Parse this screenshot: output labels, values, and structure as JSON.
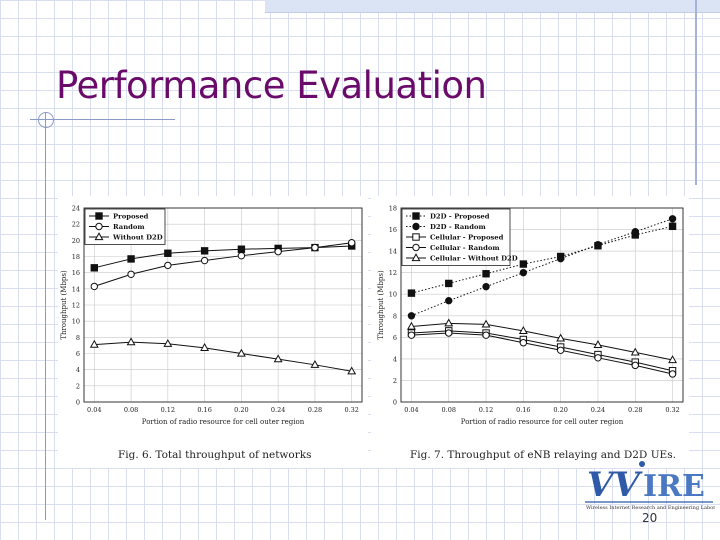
{
  "slide": {
    "title": "Performance Evaluation",
    "page_number": "20",
    "logo": {
      "wordmark": "VVIRE",
      "tagline": "Wireless Internet Research and Engineering Laboratory"
    },
    "colors": {
      "title": "#6a0a6a",
      "grid": "#d9def0",
      "accent": "#a7b3d6"
    }
  },
  "chart_data": [
    {
      "type": "line",
      "caption": "Fig. 6.   Total throughput of networks",
      "xlabel": "Portion of radio resource for cell outer region",
      "ylabel": "Throughput (Mbps)",
      "x": [
        0.04,
        0.08,
        0.12,
        0.16,
        0.2,
        0.24,
        0.28,
        0.32
      ],
      "x_ticks": [
        "0.04",
        "0.08",
        "0.12",
        "0.16",
        "0.20",
        "0.24",
        "0.28",
        "0.32"
      ],
      "ylim": [
        0,
        24
      ],
      "y_ticks": [
        0,
        2,
        4,
        6,
        8,
        10,
        12,
        14,
        16,
        18,
        20,
        22,
        24
      ],
      "grid": true,
      "legend_position": "top-left",
      "series": [
        {
          "name": "Proposed",
          "marker": "filled-square",
          "dash": "solid",
          "values": [
            16.6,
            17.7,
            18.4,
            18.7,
            18.9,
            19.0,
            19.1,
            19.3
          ]
        },
        {
          "name": "Random",
          "marker": "open-circle",
          "dash": "solid",
          "values": [
            14.3,
            15.8,
            16.9,
            17.5,
            18.1,
            18.6,
            19.1,
            19.7
          ]
        },
        {
          "name": "Without D2D",
          "marker": "open-triangle",
          "dash": "solid",
          "values": [
            7.1,
            7.4,
            7.2,
            6.7,
            6.0,
            5.3,
            4.6,
            3.8
          ]
        }
      ]
    },
    {
      "type": "line",
      "caption": "Fig. 7.   Throughput of eNB relaying and D2D UEs.",
      "xlabel": "Portion of radio resource for cell outer region",
      "ylabel": "Throughput (Mbps)",
      "x": [
        0.04,
        0.08,
        0.12,
        0.16,
        0.2,
        0.24,
        0.28,
        0.32
      ],
      "x_ticks": [
        "0.04",
        "0.08",
        "0.12",
        "0.16",
        "0.20",
        "0.24",
        "0.28",
        "0.32"
      ],
      "ylim": [
        0,
        18
      ],
      "y_ticks": [
        0,
        2,
        4,
        6,
        8,
        10,
        12,
        14,
        16,
        18
      ],
      "grid": true,
      "legend_position": "top-left",
      "series": [
        {
          "name": "D2D - Proposed",
          "marker": "filled-square",
          "dash": "dotted",
          "values": [
            10.1,
            11.0,
            11.9,
            12.8,
            13.5,
            14.5,
            15.5,
            16.3
          ]
        },
        {
          "name": "D2D - Random",
          "marker": "filled-circle",
          "dash": "dotted",
          "values": [
            8.0,
            9.4,
            10.7,
            12.0,
            13.3,
            14.6,
            15.8,
            17.0
          ]
        },
        {
          "name": "Cellular - Proposed",
          "marker": "open-square",
          "dash": "solid",
          "values": [
            6.4,
            6.6,
            6.4,
            5.8,
            5.1,
            4.4,
            3.7,
            2.9
          ]
        },
        {
          "name": "Cellular - Random",
          "marker": "open-circle",
          "dash": "solid",
          "values": [
            6.2,
            6.4,
            6.2,
            5.5,
            4.8,
            4.1,
            3.4,
            2.6
          ]
        },
        {
          "name": "Cellular - Without D2D",
          "marker": "open-triangle",
          "dash": "solid",
          "values": [
            7.0,
            7.3,
            7.2,
            6.6,
            5.9,
            5.3,
            4.6,
            3.9
          ]
        }
      ]
    }
  ]
}
